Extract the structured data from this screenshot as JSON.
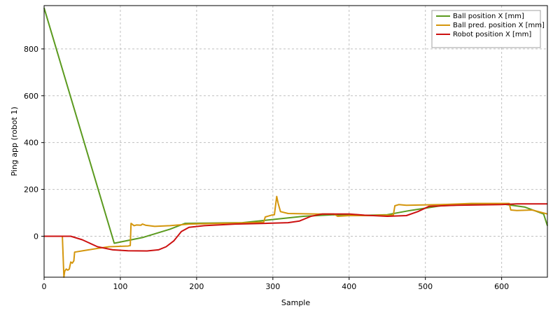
{
  "chart_data": {
    "type": "line",
    "xlabel": "Sample",
    "ylabel": "Ping app (robot 1)",
    "xlim": [
      0,
      660
    ],
    "ylim": [
      -175,
      985
    ],
    "x_ticks": [
      0,
      100,
      200,
      300,
      400,
      500,
      600
    ],
    "y_ticks": [
      0,
      200,
      400,
      600,
      800
    ],
    "grid": true,
    "legend_position": "top-right",
    "series": [
      {
        "name": "Ball position X [mm]",
        "color": "#5b9a1f",
        "points": [
          [
            0,
            975
          ],
          [
            92,
            -30
          ],
          [
            130,
            -5
          ],
          [
            165,
            30
          ],
          [
            185,
            55
          ],
          [
            260,
            58
          ],
          [
            290,
            68
          ],
          [
            340,
            85
          ],
          [
            380,
            92
          ],
          [
            410,
            88
          ],
          [
            450,
            92
          ],
          [
            480,
            110
          ],
          [
            520,
            130
          ],
          [
            560,
            135
          ],
          [
            600,
            138
          ],
          [
            630,
            125
          ],
          [
            655,
            95
          ],
          [
            660,
            45
          ]
        ]
      },
      {
        "name": "Ball pred. position X [mm]",
        "color": "#d4960d",
        "points": [
          [
            0,
            0
          ],
          [
            24,
            0
          ],
          [
            26,
            -175
          ],
          [
            27,
            -150
          ],
          [
            29,
            -140
          ],
          [
            31,
            -145
          ],
          [
            33,
            -140
          ],
          [
            35,
            -110
          ],
          [
            37,
            -115
          ],
          [
            39,
            -105
          ],
          [
            40,
            -68
          ],
          [
            55,
            -60
          ],
          [
            70,
            -52
          ],
          [
            85,
            -45
          ],
          [
            110,
            -42
          ],
          [
            113,
            -40
          ],
          [
            114,
            55
          ],
          [
            118,
            45
          ],
          [
            121,
            48
          ],
          [
            127,
            47
          ],
          [
            129,
            52
          ],
          [
            133,
            47
          ],
          [
            145,
            42
          ],
          [
            165,
            45
          ],
          [
            190,
            52
          ],
          [
            230,
            55
          ],
          [
            270,
            58
          ],
          [
            288,
            60
          ],
          [
            290,
            82
          ],
          [
            298,
            90
          ],
          [
            302,
            92
          ],
          [
            305,
            170
          ],
          [
            307,
            140
          ],
          [
            310,
            105
          ],
          [
            320,
            97
          ],
          [
            360,
            95
          ],
          [
            380,
            95
          ],
          [
            385,
            85
          ],
          [
            400,
            88
          ],
          [
            430,
            88
          ],
          [
            440,
            90
          ],
          [
            458,
            90
          ],
          [
            460,
            130
          ],
          [
            465,
            135
          ],
          [
            475,
            132
          ],
          [
            520,
            135
          ],
          [
            560,
            140
          ],
          [
            610,
            140
          ],
          [
            612,
            112
          ],
          [
            620,
            110
          ],
          [
            640,
            112
          ],
          [
            660,
            95
          ]
        ]
      },
      {
        "name": "Robot position X [mm]",
        "color": "#cc1111",
        "points": [
          [
            0,
            0
          ],
          [
            35,
            0
          ],
          [
            50,
            -15
          ],
          [
            70,
            -45
          ],
          [
            90,
            -58
          ],
          [
            110,
            -62
          ],
          [
            135,
            -63
          ],
          [
            150,
            -58
          ],
          [
            160,
            -45
          ],
          [
            170,
            -20
          ],
          [
            180,
            20
          ],
          [
            190,
            38
          ],
          [
            210,
            45
          ],
          [
            250,
            52
          ],
          [
            290,
            55
          ],
          [
            320,
            58
          ],
          [
            335,
            65
          ],
          [
            350,
            85
          ],
          [
            365,
            95
          ],
          [
            400,
            95
          ],
          [
            420,
            90
          ],
          [
            450,
            85
          ],
          [
            475,
            88
          ],
          [
            490,
            105
          ],
          [
            505,
            128
          ],
          [
            540,
            132
          ],
          [
            600,
            135
          ],
          [
            620,
            138
          ],
          [
            660,
            138
          ]
        ]
      }
    ]
  }
}
